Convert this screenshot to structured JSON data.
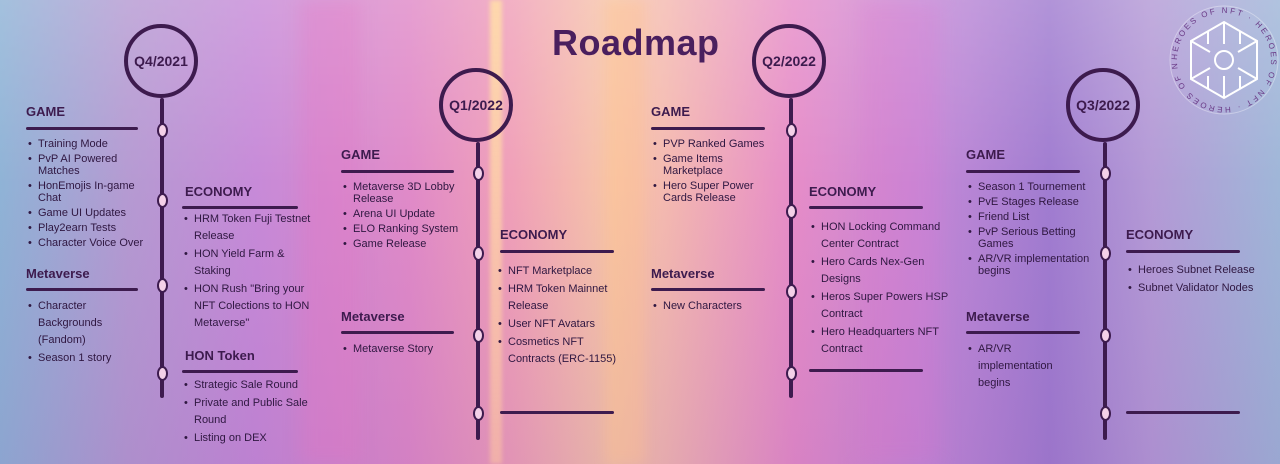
{
  "title": "Roadmap",
  "quarters": [
    "Q4/2021",
    "Q1/2022",
    "Q2/2022",
    "Q3/2022"
  ],
  "q4_2021": {
    "game": {
      "heading": "GAME",
      "items": [
        "Training Mode",
        "PvP AI Powered Matches",
        "HonEmojis In-game Chat",
        "Game UI Updates",
        "Play2earn Tests",
        "Character Voice Over"
      ]
    },
    "metaverse": {
      "heading": "Metaverse",
      "items": [
        "Character Backgrounds (Fandom)",
        "Season 1 story"
      ]
    },
    "economy": {
      "heading": "ECONOMY",
      "items": [
        "HRM Token Fuji Testnet Release",
        "HON Yield Farm & Staking",
        "HON Rush \"Bring your NFT Colections to HON  Metaverse\""
      ]
    },
    "hon_token": {
      "heading": "HON Token",
      "items": [
        "Strategic Sale Round",
        "Private and Public Sale Round",
        "Listing on DEX"
      ]
    }
  },
  "q1_2022": {
    "game": {
      "heading": "GAME",
      "items": [
        "Metaverse 3D Lobby Release",
        "Arena UI Update",
        "ELO Ranking System",
        "Game Release"
      ]
    },
    "metaverse": {
      "heading": "Metaverse",
      "items": [
        "Metaverse Story"
      ]
    },
    "economy": {
      "heading": "ECONOMY",
      "items": [
        "NFT Marketplace",
        "HRM Token Mainnet Release",
        "User NFT Avatars",
        "Cosmetics NFT Contracts (ERC-1155)"
      ]
    }
  },
  "q2_2022": {
    "game": {
      "heading": "GAME",
      "items": [
        "PVP Ranked Games",
        "Game Items Marketplace",
        "Hero Super Power Cards Release"
      ]
    },
    "metaverse": {
      "heading": "Metaverse",
      "items": [
        "New Characters"
      ]
    },
    "economy": {
      "heading": "ECONOMY",
      "items": [
        "HON Locking Command Center Contract",
        "Hero Cards Nex-Gen Designs",
        "Heros Super Powers HSP Contract",
        "Hero Headquarters NFT Contract"
      ]
    }
  },
  "q3_2022": {
    "game": {
      "heading": "GAME",
      "items": [
        "Season 1 Tournement",
        "PvE Stages Release",
        "Friend List",
        "PvP Serious Betting Games",
        "AR/VR implementation begins"
      ]
    },
    "metaverse": {
      "heading": "Metaverse",
      "items": [
        "AR/VR implementation begins"
      ]
    },
    "economy": {
      "heading": "ECONOMY",
      "items": [
        "Heroes Subnet Release",
        "Subnet Validator Nodes"
      ]
    }
  },
  "logo": {
    "ring_text": "HEROES OF NFT · HEROES OF NFT · HEROES OF NFT ·",
    "icon": "hexagon-network-icon"
  },
  "colors": {
    "ink": "#3d1b4e",
    "title": "#4a1f5e"
  }
}
